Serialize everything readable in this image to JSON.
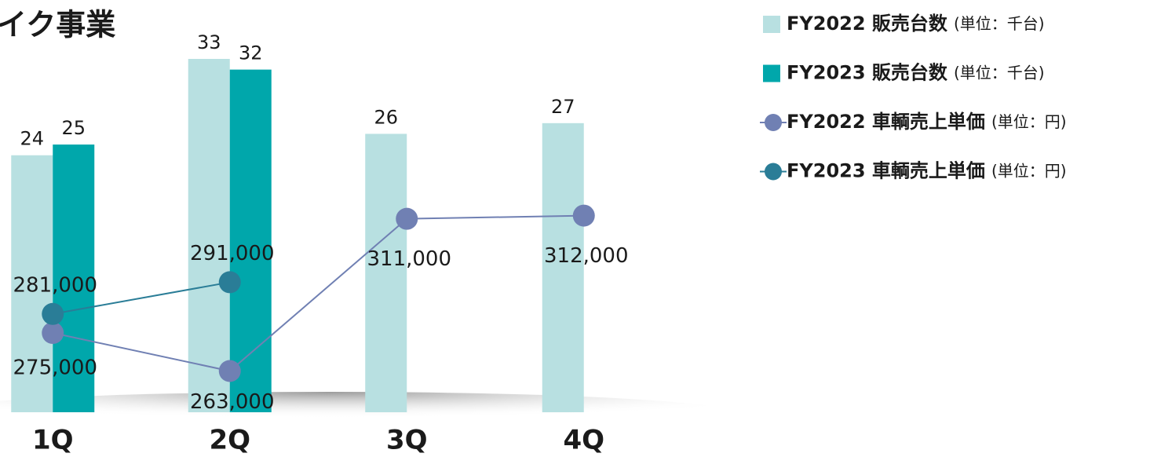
{
  "chart_data": {
    "type": "bar",
    "title": "イク事業",
    "categories": [
      "1Q",
      "2Q",
      "3Q",
      "4Q"
    ],
    "ylim": [
      0,
      38.5
    ],
    "y2lim": [
      250000,
      380000
    ],
    "series": [
      {
        "name": "FY2022 販売台数",
        "unit": "(単位：千台)",
        "type": "bar",
        "color": "#b8e0e1",
        "values": [
          24,
          33,
          26,
          27
        ]
      },
      {
        "name": "FY2023 販売台数",
        "unit": "(単位：千台)",
        "type": "bar",
        "color": "#00a7ab",
        "values": [
          25,
          32,
          null,
          null
        ]
      },
      {
        "name": "FY2022 車輌売上単価",
        "unit": "(単位：円)",
        "type": "line",
        "axis": "y2",
        "color": "#7080b3",
        "values": [
          275000,
          263000,
          311000,
          312000
        ],
        "value_labels": [
          "275,000",
          "263,000",
          "311,000",
          "312,000"
        ]
      },
      {
        "name": "FY2023 車輌売上単価",
        "unit": "(単位：円)",
        "type": "line",
        "axis": "y2",
        "color": "#2a7d97",
        "values": [
          281000,
          291000,
          null,
          null
        ],
        "value_labels": [
          "281,000",
          "291,000"
        ]
      }
    ]
  }
}
